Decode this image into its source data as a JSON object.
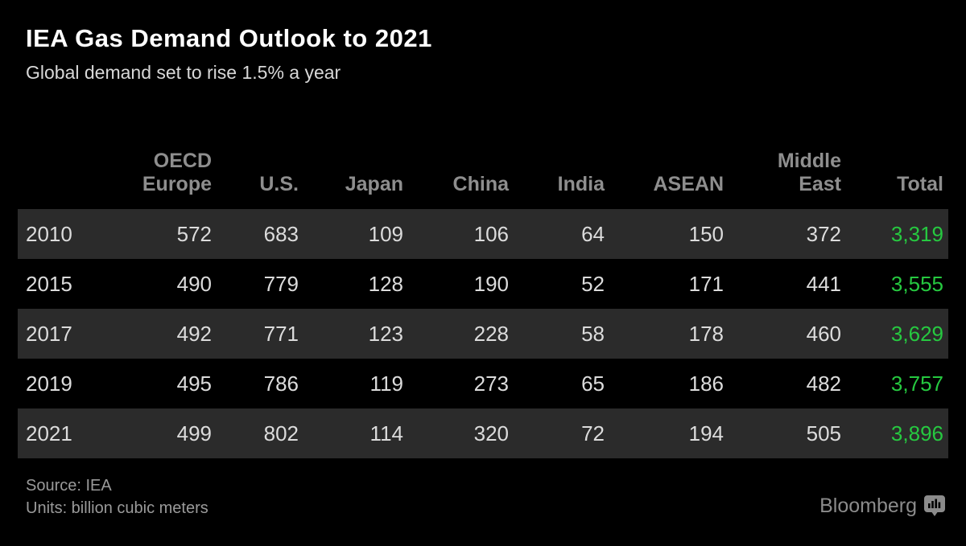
{
  "header": {
    "title": "IEA Gas Demand Outlook to 2021",
    "subtitle": "Global demand set to rise 1.5% a year"
  },
  "chart_data": {
    "type": "table",
    "title": "IEA Gas Demand Outlook to 2021",
    "subtitle": "Global demand set to rise 1.5% a year",
    "units": "billion cubic meters",
    "source": "IEA",
    "columns": [
      "OECD\nEurope",
      "U.S.",
      "Japan",
      "China",
      "India",
      "ASEAN",
      "Middle\nEast",
      "Total"
    ],
    "rows": [
      {
        "year": "2010",
        "values": [
          572,
          683,
          109,
          106,
          64,
          150,
          372
        ],
        "total": "3,319"
      },
      {
        "year": "2015",
        "values": [
          490,
          779,
          128,
          190,
          52,
          171,
          441
        ],
        "total": "3,555"
      },
      {
        "year": "2017",
        "values": [
          492,
          771,
          123,
          228,
          58,
          178,
          460
        ],
        "total": "3,629"
      },
      {
        "year": "2019",
        "values": [
          495,
          786,
          119,
          273,
          65,
          186,
          482
        ],
        "total": "3,757"
      },
      {
        "year": "2021",
        "values": [
          499,
          802,
          114,
          320,
          72,
          194,
          505
        ],
        "total": "3,896"
      }
    ]
  },
  "footer": {
    "source_line": "Source: IEA",
    "units_line": "Units: billion cubic meters",
    "brand": "Bloomberg"
  },
  "colors": {
    "background": "#000000",
    "row_stripe": "#2b2b2b",
    "header_text": "#8e8e8e",
    "cell_text": "#dcdcdc",
    "total_green": "#26c940",
    "title_text": "#ffffff",
    "subtitle_text": "#d8d8d8",
    "footer_text": "#9a9a9a",
    "brand_text": "#8b8b8b"
  }
}
